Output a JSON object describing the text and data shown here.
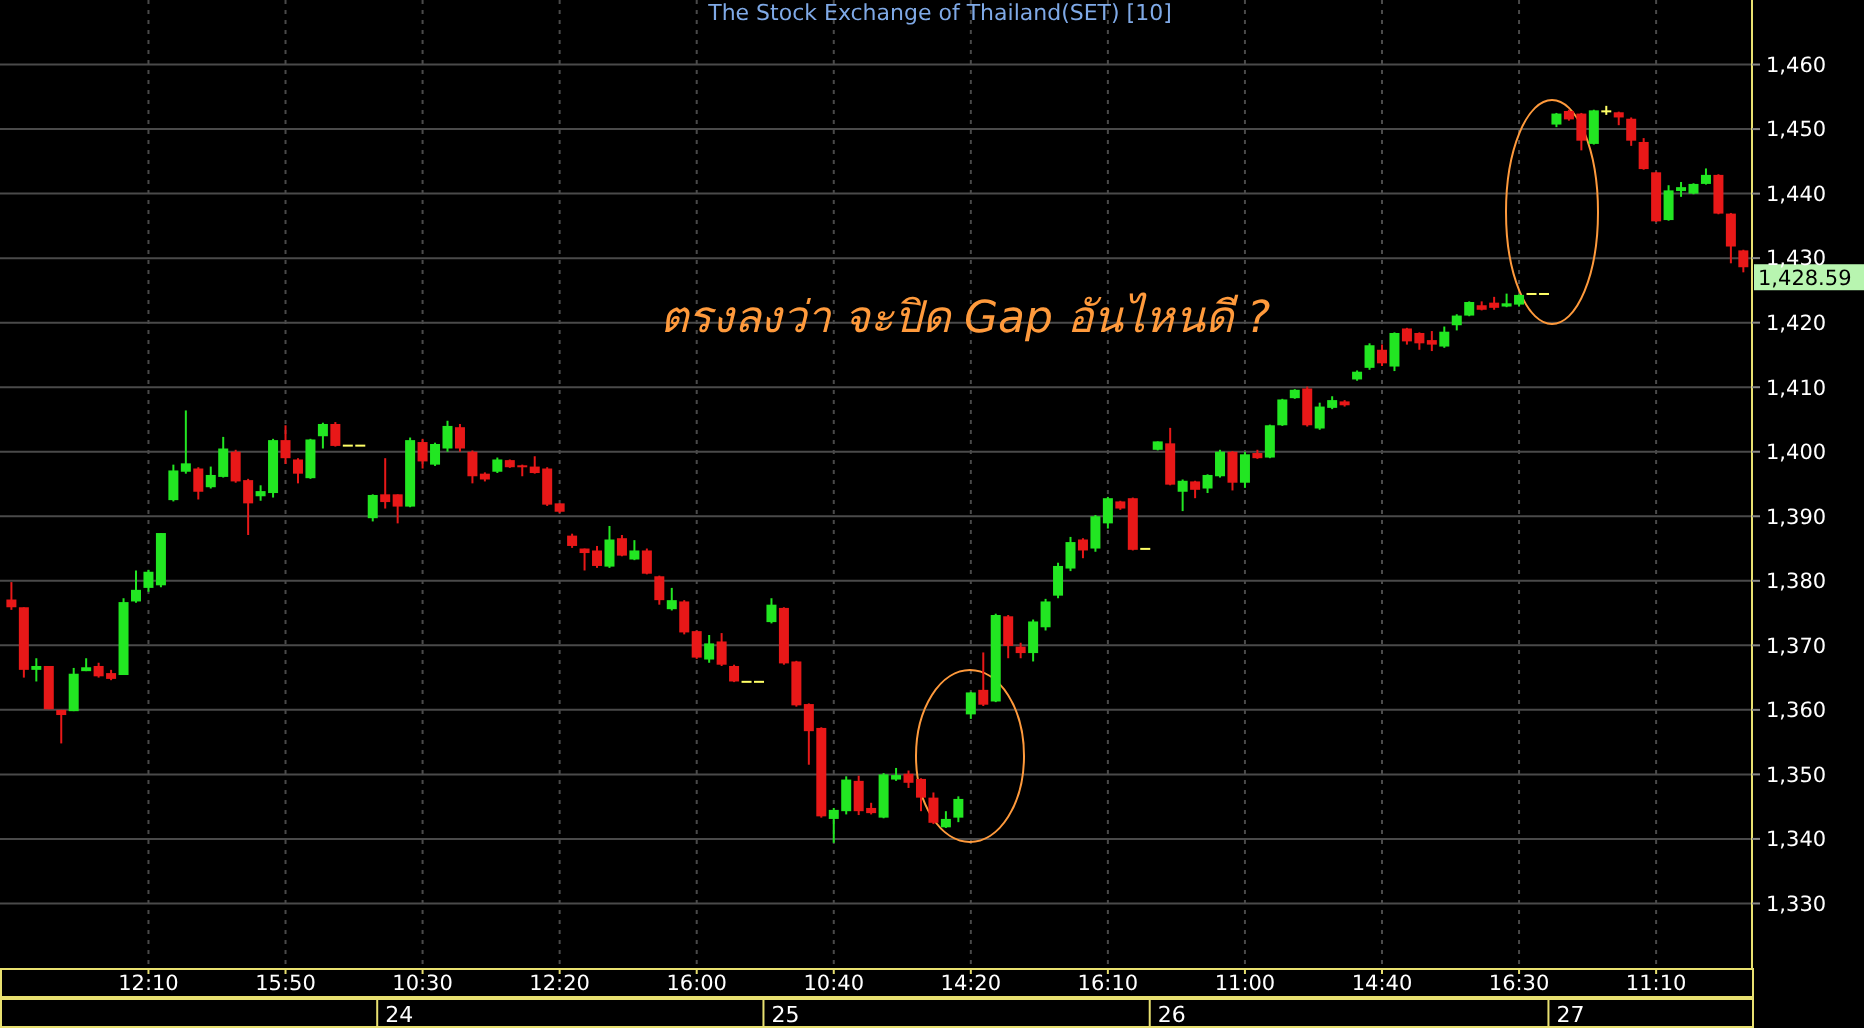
{
  "chart_data": {
    "type": "candlestick",
    "title": "The Stock Exchange of Thailand(SET) [10]",
    "annotations": [
      "ตรงลงว่า จะปิด Gap อันไหนดี ?",
      "24",
      "25",
      "26",
      "27",
      "1,428.59"
    ],
    "categories": [
      null,
      null,
      null,
      null,
      null,
      null,
      null,
      null,
      null,
      null,
      null,
      "12:10",
      null,
      null,
      null,
      null,
      null,
      null,
      null,
      null,
      null,
      null,
      "15:50",
      null,
      null,
      null,
      null,
      null,
      null,
      null,
      null,
      null,
      null,
      "10:30",
      null,
      null,
      null,
      null,
      null,
      null,
      null,
      null,
      null,
      null,
      "12:20",
      null,
      null,
      null,
      null,
      null,
      null,
      null,
      null,
      null,
      null,
      "16:00",
      null,
      null,
      null,
      null,
      null,
      null,
      null,
      null,
      null,
      null,
      "10:40",
      null,
      null,
      null,
      null,
      null,
      null,
      null,
      null,
      null,
      null,
      "14:20",
      null,
      null,
      null,
      null,
      null,
      null,
      null,
      null,
      null,
      null,
      "16:10",
      null,
      null,
      null,
      null,
      null,
      null,
      null,
      null,
      null,
      null,
      "11:00",
      null,
      null,
      null,
      null,
      null,
      null,
      null,
      null,
      null,
      null,
      "14:40",
      null,
      null,
      null,
      null,
      null,
      null,
      null,
      null,
      null,
      null,
      "16:30",
      null,
      null,
      null,
      null,
      null,
      null,
      null,
      null,
      null,
      null,
      "11:10",
      null,
      null,
      null,
      null,
      null,
      null,
      null
    ],
    "ohlc": [
      [
        1377.1,
        1379.8,
        1375.5,
        1375.9
      ],
      [
        1375.9,
        1375.9,
        1365.0,
        1366.2
      ],
      [
        1366.2,
        1368.0,
        1364.4,
        1366.8
      ],
      [
        1366.8,
        1366.8,
        1360.1,
        1360.1
      ],
      [
        1360.0,
        1360.0,
        1354.8,
        1359.2
      ],
      [
        1359.8,
        1366.5,
        1359.8,
        1365.6
      ],
      [
        1366.0,
        1368.0,
        1366.0,
        1366.6
      ],
      [
        1366.8,
        1367.3,
        1365.0,
        1365.2
      ],
      [
        1365.7,
        1366.2,
        1364.6,
        1364.8
      ],
      [
        1365.4,
        1377.3,
        1365.4,
        1376.7
      ],
      [
        1376.8,
        1381.6,
        1376.6,
        1378.6
      ],
      [
        1378.9,
        1381.7,
        1378.3,
        1381.4
      ],
      [
        1379.3,
        1387.4,
        1379.0,
        1387.4
      ],
      [
        1392.5,
        1398.0,
        1392.3,
        1397.1
      ],
      [
        1396.9,
        1406.4,
        1396.6,
        1398.2
      ],
      [
        1397.4,
        1397.6,
        1392.6,
        1393.8
      ],
      [
        1394.5,
        1397.7,
        1394.3,
        1396.4
      ],
      [
        1396.1,
        1402.3,
        1396.0,
        1400.5
      ],
      [
        1400.0,
        1400.3,
        1395.2,
        1395.4
      ],
      [
        1395.6,
        1395.8,
        1387.1,
        1392.0
      ],
      [
        1393.1,
        1394.8,
        1392.4,
        1393.9
      ],
      [
        1393.6,
        1402.0,
        1392.9,
        1401.8
      ],
      [
        1401.8,
        1404.1,
        1398.1,
        1399.0
      ],
      [
        1398.8,
        1399.0,
        1395.1,
        1396.6
      ],
      [
        1395.9,
        1402.0,
        1395.8,
        1401.9
      ],
      [
        1402.4,
        1404.5,
        1400.5,
        1404.3
      ],
      [
        1404.3,
        1404.6,
        1400.8,
        1400.9
      ],
      [
        1401.1,
        1401.1,
        1401.1,
        1401.1
      ],
      [
        1401.1,
        1401.1,
        1401.1,
        1401.1
      ],
      [
        1389.7,
        1393.4,
        1389.2,
        1393.3
      ],
      [
        1393.4,
        1399.0,
        1391.2,
        1392.2
      ],
      [
        1393.4,
        1393.4,
        1388.9,
        1391.5
      ],
      [
        1391.5,
        1402.2,
        1391.4,
        1401.8
      ],
      [
        1401.5,
        1402.0,
        1397.4,
        1398.5
      ],
      [
        1398.0,
        1401.4,
        1397.8,
        1401.2
      ],
      [
        1400.5,
        1404.8,
        1400.0,
        1404.0
      ],
      [
        1403.8,
        1404.3,
        1400.0,
        1400.5
      ],
      [
        1400.0,
        1400.2,
        1395.1,
        1396.2
      ],
      [
        1396.6,
        1396.8,
        1395.4,
        1395.7
      ],
      [
        1396.9,
        1399.1,
        1396.7,
        1398.8
      ],
      [
        1398.7,
        1398.8,
        1397.5,
        1397.6
      ],
      [
        1397.9,
        1398.0,
        1396.2,
        1397.6
      ],
      [
        1397.7,
        1399.3,
        1396.6,
        1396.7
      ],
      [
        1397.4,
        1397.6,
        1391.6,
        1391.8
      ],
      [
        1392.0,
        1392.0,
        1390.5,
        1390.7
      ],
      [
        1387.0,
        1387.3,
        1385.1,
        1385.4
      ],
      [
        1385.0,
        1385.0,
        1381.6,
        1384.3
      ],
      [
        1384.7,
        1385.4,
        1382.0,
        1382.3
      ],
      [
        1382.2,
        1388.5,
        1382.0,
        1386.4
      ],
      [
        1386.6,
        1387.1,
        1383.8,
        1383.9
      ],
      [
        1383.3,
        1386.3,
        1383.2,
        1384.7
      ],
      [
        1384.7,
        1385.0,
        1381.0,
        1381.1
      ],
      [
        1380.7,
        1380.8,
        1376.3,
        1377.0
      ],
      [
        1375.6,
        1378.9,
        1375.4,
        1377.0
      ],
      [
        1376.8,
        1377.0,
        1371.7,
        1372.0
      ],
      [
        1372.2,
        1372.3,
        1367.9,
        1368.1
      ],
      [
        1367.8,
        1371.6,
        1367.3,
        1370.3
      ],
      [
        1370.6,
        1371.9,
        1366.8,
        1367.0
      ],
      [
        1366.8,
        1367.0,
        1364.3,
        1364.4
      ],
      [
        1364.5,
        1364.5,
        1364.5,
        1364.5
      ],
      [
        1364.5,
        1364.5,
        1364.5,
        1364.5
      ],
      [
        1373.6,
        1377.3,
        1373.4,
        1376.3
      ],
      [
        1375.8,
        1375.9,
        1367.0,
        1367.2
      ],
      [
        1367.5,
        1367.6,
        1360.5,
        1360.7
      ],
      [
        1360.9,
        1361.0,
        1351.5,
        1356.7
      ],
      [
        1357.2,
        1357.3,
        1343.3,
        1343.5
      ],
      [
        1343.1,
        1344.8,
        1339.4,
        1344.5
      ],
      [
        1344.3,
        1349.7,
        1343.8,
        1349.2
      ],
      [
        1349.0,
        1349.8,
        1343.7,
        1344.3
      ],
      [
        1344.8,
        1345.6,
        1343.8,
        1344.0
      ],
      [
        1343.3,
        1350.2,
        1343.2,
        1350.0
      ],
      [
        1349.2,
        1351.0,
        1349.0,
        1349.9
      ],
      [
        1350.1,
        1350.6,
        1347.9,
        1348.7
      ],
      [
        1349.3,
        1349.4,
        1344.3,
        1346.4
      ],
      [
        1346.4,
        1347.2,
        1342.3,
        1342.5
      ],
      [
        1341.8,
        1344.3,
        1341.7,
        1343.1
      ],
      [
        1343.3,
        1346.6,
        1342.6,
        1346.2
      ],
      [
        1359.3,
        1362.8,
        1358.6,
        1362.7
      ],
      [
        1363.1,
        1368.9,
        1360.6,
        1360.8
      ],
      [
        1361.3,
        1374.9,
        1361.2,
        1374.7
      ],
      [
        1374.5,
        1374.7,
        1368.0,
        1369.9
      ],
      [
        1369.8,
        1370.4,
        1368.0,
        1368.8
      ],
      [
        1368.8,
        1374.0,
        1367.5,
        1373.7
      ],
      [
        1372.8,
        1377.2,
        1372.3,
        1376.8
      ],
      [
        1377.7,
        1382.8,
        1377.3,
        1382.3
      ],
      [
        1381.9,
        1386.8,
        1381.5,
        1386.0
      ],
      [
        1386.4,
        1386.6,
        1383.5,
        1384.7
      ],
      [
        1385.0,
        1390.2,
        1384.5,
        1390.0
      ],
      [
        1388.9,
        1393.0,
        1388.1,
        1392.8
      ],
      [
        1392.3,
        1392.4,
        1391.0,
        1391.2
      ],
      [
        1392.8,
        1392.9,
        1384.7,
        1384.8
      ],
      [
        1385.1,
        1385.1,
        1385.1,
        1385.1
      ],
      [
        1400.3,
        1401.6,
        1400.2,
        1401.6
      ],
      [
        1401.3,
        1403.7,
        1394.8,
        1394.9
      ],
      [
        1393.8,
        1395.7,
        1390.8,
        1395.5
      ],
      [
        1395.4,
        1395.5,
        1392.8,
        1394.1
      ],
      [
        1394.3,
        1396.5,
        1393.6,
        1396.4
      ],
      [
        1396.2,
        1400.3,
        1396.0,
        1400.0
      ],
      [
        1400.0,
        1400.1,
        1394.0,
        1395.2
      ],
      [
        1395.2,
        1400.0,
        1394.4,
        1399.6
      ],
      [
        1399.8,
        1400.3,
        1398.9,
        1399.0
      ],
      [
        1399.1,
        1404.2,
        1399.0,
        1404.1
      ],
      [
        1404.1,
        1408.2,
        1404.0,
        1408.1
      ],
      [
        1408.3,
        1409.7,
        1408.2,
        1409.6
      ],
      [
        1409.8,
        1410.1,
        1403.9,
        1404.1
      ],
      [
        1403.6,
        1407.6,
        1403.4,
        1407.0
      ],
      [
        1406.8,
        1408.6,
        1406.6,
        1408.0
      ],
      [
        1407.8,
        1408.0,
        1407.0,
        1407.2
      ],
      [
        1411.2,
        1412.6,
        1411.0,
        1412.4
      ],
      [
        1413.0,
        1416.8,
        1412.7,
        1416.5
      ],
      [
        1415.8,
        1416.6,
        1413.3,
        1413.7
      ],
      [
        1413.2,
        1418.5,
        1412.5,
        1418.4
      ],
      [
        1419.1,
        1419.2,
        1416.6,
        1417.1
      ],
      [
        1418.4,
        1418.5,
        1415.8,
        1416.8
      ],
      [
        1417.3,
        1418.7,
        1415.6,
        1416.6
      ],
      [
        1416.3,
        1419.4,
        1416.1,
        1418.6
      ],
      [
        1419.6,
        1421.3,
        1418.8,
        1421.1
      ],
      [
        1421.1,
        1423.3,
        1421.0,
        1423.2
      ],
      [
        1422.7,
        1423.3,
        1421.9,
        1422.0
      ],
      [
        1423.1,
        1424.0,
        1422.0,
        1422.3
      ],
      [
        1422.5,
        1424.5,
        1422.4,
        1423.0
      ],
      [
        1422.8,
        1424.4,
        1422.5,
        1424.3
      ],
      [
        1424.6,
        1424.6,
        1424.6,
        1424.6
      ],
      [
        1424.6,
        1424.6,
        1424.6,
        1424.6
      ],
      [
        1450.7,
        1452.5,
        1450.3,
        1452.4
      ],
      [
        1452.8,
        1453.0,
        1451.3,
        1451.5
      ],
      [
        1452.4,
        1452.5,
        1446.7,
        1448.2
      ],
      [
        1447.7,
        1453.0,
        1447.6,
        1452.9
      ],
      [
        1452.9,
        1453.6,
        1452.2,
        1452.9
      ],
      [
        1452.6,
        1452.7,
        1450.6,
        1451.8
      ],
      [
        1451.6,
        1451.8,
        1447.4,
        1448.2
      ],
      [
        1448.0,
        1448.6,
        1443.7,
        1443.8
      ],
      [
        1443.3,
        1443.4,
        1435.6,
        1435.7
      ],
      [
        1435.9,
        1441.3,
        1435.8,
        1440.5
      ],
      [
        1440.4,
        1441.8,
        1439.5,
        1441.0
      ],
      [
        1440.0,
        1441.6,
        1439.9,
        1441.5
      ],
      [
        1441.5,
        1443.9,
        1441.4,
        1442.9
      ],
      [
        1442.9,
        1443.0,
        1436.8,
        1436.9
      ],
      [
        1436.9,
        1437.0,
        1429.2,
        1431.8
      ],
      [
        1431.2,
        1431.3,
        1427.8,
        1428.59
      ]
    ],
    "colors": [
      "#e81818",
      "#e81818",
      "#22e622",
      "#e81818",
      "#e81818",
      "#22e622",
      "#22e622",
      "#e81818",
      "#e81818",
      "#22e622",
      "#22e622",
      "#22e622",
      "#22e622",
      "#22e622",
      "#22e622",
      "#e81818",
      "#22e622",
      "#22e622",
      "#e81818",
      "#e81818",
      "#22e622",
      "#22e622",
      "#e81818",
      "#e81818",
      "#22e622",
      "#22e622",
      "#e81818",
      "#ffff66",
      "#ffff66",
      "#22e622",
      "#e81818",
      "#e81818",
      "#22e622",
      "#e81818",
      "#22e622",
      "#22e622",
      "#e81818",
      "#e81818",
      "#e81818",
      "#22e622",
      "#e81818",
      "#e81818",
      "#e81818",
      "#e81818",
      "#e81818",
      "#e81818",
      "#e81818",
      "#e81818",
      "#22e622",
      "#e81818",
      "#22e622",
      "#e81818",
      "#e81818",
      "#22e622",
      "#e81818",
      "#e81818",
      "#22e622",
      "#e81818",
      "#e81818",
      "#ffff66",
      "#ffff66",
      "#22e622",
      "#e81818",
      "#e81818",
      "#e81818",
      "#e81818",
      "#22e622",
      "#22e622",
      "#e81818",
      "#e81818",
      "#22e622",
      "#22e622",
      "#e81818",
      "#e81818",
      "#e81818",
      "#22e622",
      "#22e622",
      "#22e622",
      "#e81818",
      "#22e622",
      "#e81818",
      "#e81818",
      "#22e622",
      "#22e622",
      "#22e622",
      "#22e622",
      "#e81818",
      "#22e622",
      "#22e622",
      "#e81818",
      "#e81818",
      "#ffff66",
      "#22e622",
      "#e81818",
      "#22e622",
      "#e81818",
      "#22e622",
      "#22e622",
      "#e81818",
      "#22e622",
      "#e81818",
      "#22e622",
      "#22e622",
      "#22e622",
      "#e81818",
      "#22e622",
      "#22e622",
      "#e81818",
      "#22e622",
      "#22e622",
      "#e81818",
      "#22e622",
      "#e81818",
      "#e81818",
      "#e81818",
      "#22e622",
      "#22e622",
      "#22e622",
      "#e81818",
      "#e81818",
      "#22e622",
      "#22e622",
      "#ffff66",
      "#ffff66",
      "#22e622",
      "#e81818",
      "#e81818",
      "#22e622",
      "#ffff66",
      "#e81818",
      "#e81818",
      "#e81818",
      "#e81818",
      "#22e622",
      "#22e622",
      "#22e622",
      "#22e622",
      "#e81818",
      "#e81818",
      "#e81818"
    ],
    "ylim": [
      1320,
      1470
    ],
    "yticks": [
      {
        "value": 1330,
        "label": "1,330"
      },
      {
        "value": 1340,
        "label": "1,340"
      },
      {
        "value": 1350,
        "label": "1,350"
      },
      {
        "value": 1360,
        "label": "1,360"
      },
      {
        "value": 1370,
        "label": "1,370"
      },
      {
        "value": 1380,
        "label": "1,380"
      },
      {
        "value": 1390,
        "label": "1,390"
      },
      {
        "value": 1400,
        "label": "1,400"
      },
      {
        "value": 1410,
        "label": "1,410"
      },
      {
        "value": 1420,
        "label": "1,420"
      },
      {
        "value": 1430,
        "label": "1,430"
      },
      {
        "value": 1440,
        "label": "1,440"
      },
      {
        "value": 1450,
        "label": "1,450"
      },
      {
        "value": 1460,
        "label": "1,460"
      }
    ],
    "grid": true
  }
}
